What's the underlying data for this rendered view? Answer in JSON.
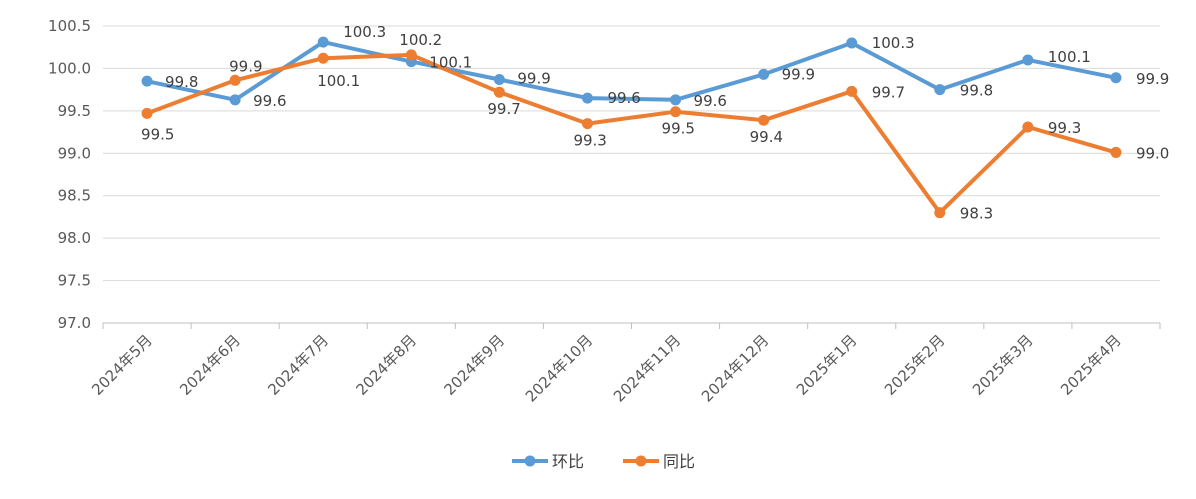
{
  "chart_data": {
    "type": "line",
    "categories": [
      "2024年5月",
      "2024年6月",
      "2024年7月",
      "2024年8月",
      "2024年9月",
      "2024年10月",
      "2024年11月",
      "2024年12月",
      "2025年1月",
      "2025年2月",
      "2025年3月",
      "2025年4月"
    ],
    "series": [
      {
        "name": "环比",
        "color": "#5b9bd5",
        "values": [
          99.8,
          99.6,
          100.3,
          100.1,
          99.9,
          99.6,
          99.6,
          99.9,
          100.3,
          99.8,
          100.1,
          99.9
        ]
      },
      {
        "name": "同比",
        "color": "#ed7d31",
        "values": [
          99.5,
          99.9,
          100.1,
          100.2,
          99.7,
          99.3,
          99.5,
          99.4,
          99.7,
          98.3,
          99.3,
          99.0
        ]
      }
    ],
    "plot_values": {
      "环比": [
        99.85,
        99.63,
        100.31,
        100.08,
        99.87,
        99.65,
        99.63,
        99.93,
        100.3,
        99.75,
        100.1,
        99.89
      ],
      "同比": [
        99.47,
        99.86,
        100.12,
        100.16,
        99.72,
        99.35,
        99.49,
        99.39,
        99.73,
        98.3,
        99.31,
        99.01
      ]
    },
    "yticks": [
      "97.0",
      "97.5",
      "98.0",
      "98.5",
      "99.0",
      "99.5",
      "100.0",
      "100.5"
    ],
    "ylim": [
      97.0,
      100.5
    ],
    "grid": true,
    "legend": "bottom-center",
    "title": "",
    "xlabel": "",
    "ylabel": ""
  }
}
